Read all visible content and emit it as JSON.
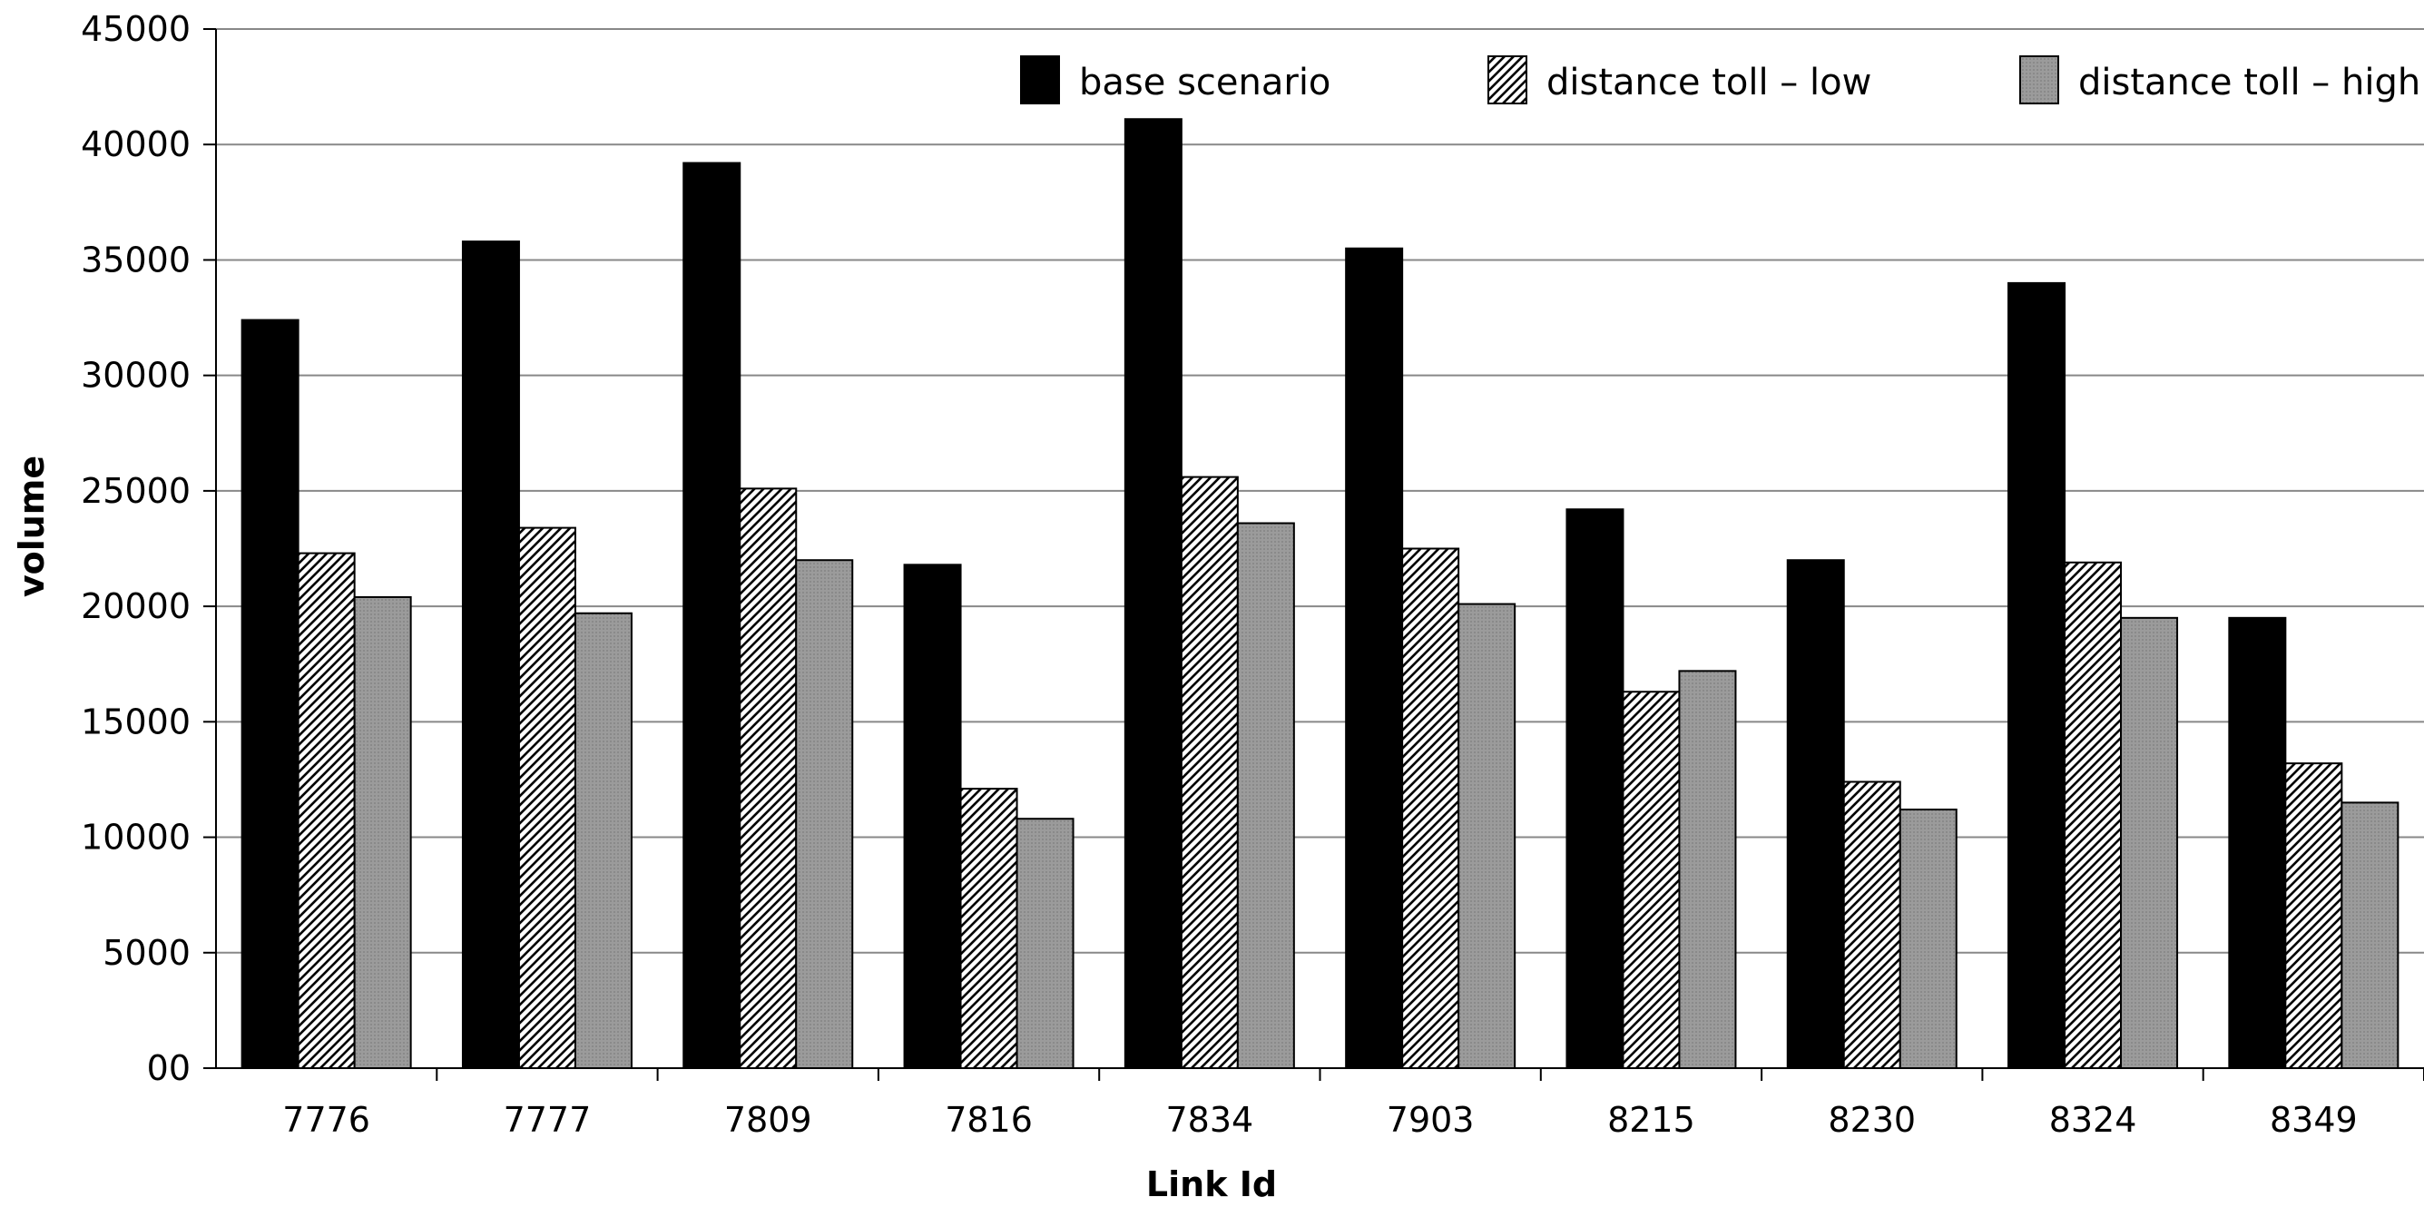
{
  "chart_data": {
    "type": "bar",
    "title": "",
    "xlabel": "Link Id",
    "ylabel": "volume",
    "categories": [
      "7776",
      "7777",
      "7809",
      "7816",
      "7834",
      "7903",
      "8215",
      "8230",
      "8324",
      "8349"
    ],
    "series": [
      {
        "name": "base scenario",
        "values": [
          32400,
          35800,
          39200,
          21800,
          41100,
          35500,
          24200,
          22000,
          34000,
          19500
        ],
        "color": "#000000"
      },
      {
        "name": "distance toll – low",
        "values": [
          22300,
          23400,
          25100,
          12100,
          25600,
          22500,
          16300,
          12400,
          21900,
          13200
        ],
        "color": "#ffffff"
      },
      {
        "name": "distance toll – high",
        "values": [
          20400,
          19700,
          22000,
          10800,
          23600,
          20100,
          17200,
          11200,
          19500,
          11500
        ],
        "color": "#999999"
      }
    ],
    "ylim": [
      0,
      45000
    ],
    "yticks": [
      "00",
      "5000",
      "10000",
      "15000",
      "20000",
      "25000",
      "30000",
      "35000",
      "40000",
      "45000"
    ],
    "grid": true,
    "legend_position": "top-right"
  }
}
